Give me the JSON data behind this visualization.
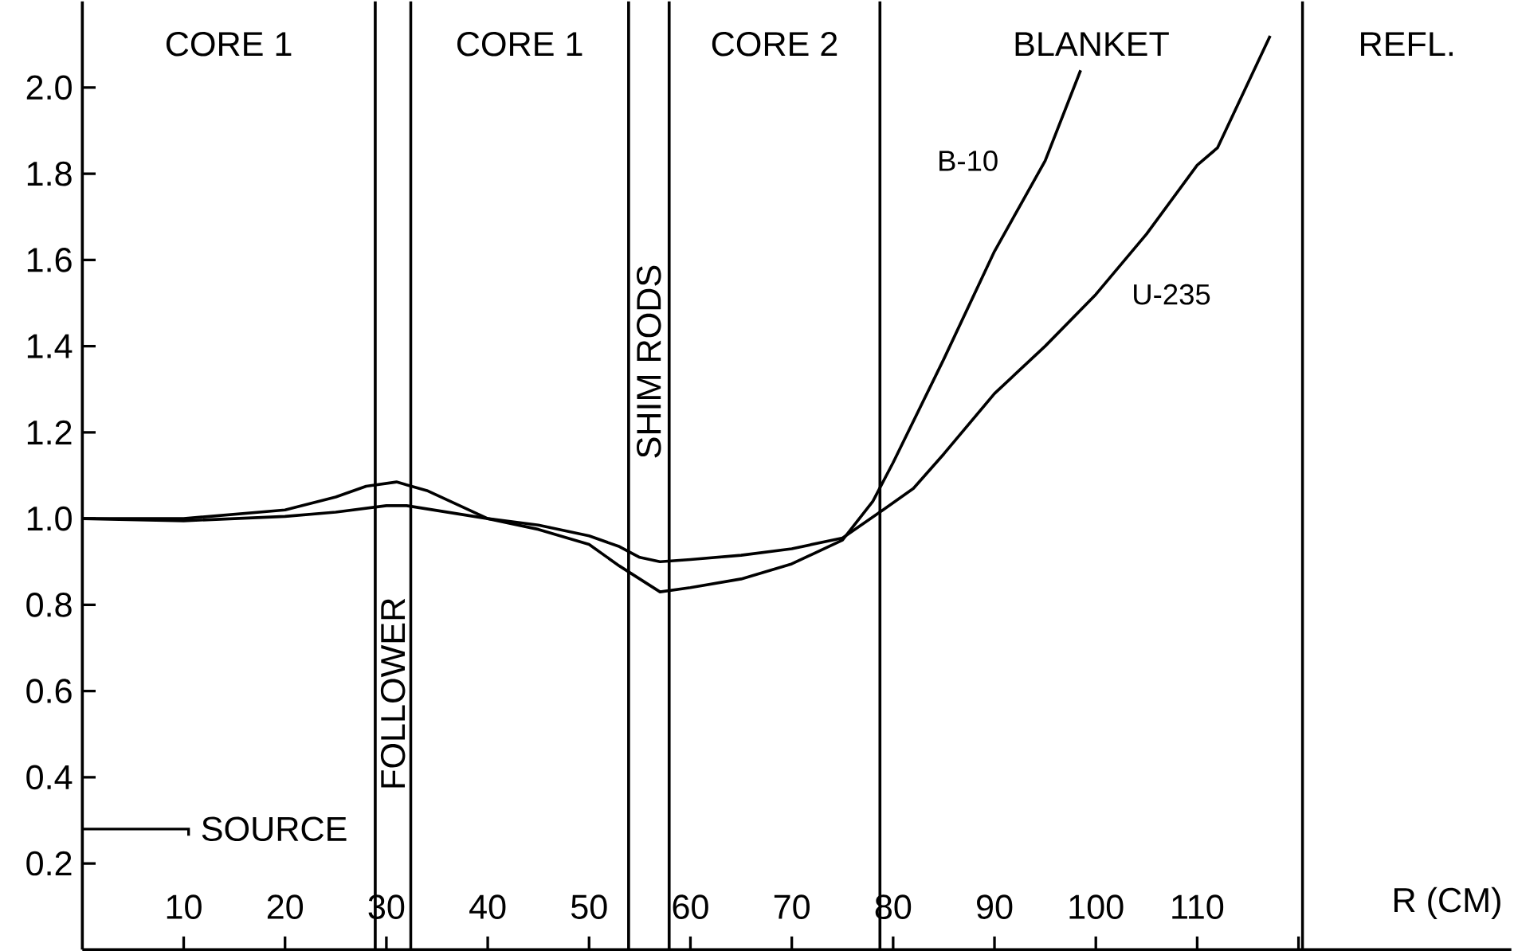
{
  "chart_data": {
    "type": "line",
    "xlabel": "R (CM)",
    "xlim": [
      0,
      141
    ],
    "ylim": [
      0,
      2.2
    ],
    "xticks": [
      10,
      20,
      30,
      40,
      50,
      60,
      70,
      80,
      90,
      100,
      110,
      {
        "value": 120,
        "label": null
      }
    ],
    "yticks": [
      {
        "value": 0.2,
        "label": "0.2"
      },
      {
        "value": 0.4,
        "label": "0.4"
      },
      {
        "value": 0.6,
        "label": "0.6"
      },
      {
        "value": 0.8,
        "label": "0.8"
      },
      {
        "value": 1.0,
        "label": "1.0"
      },
      {
        "value": 1.2,
        "label": "1.2"
      },
      {
        "value": 1.4,
        "label": "1.4"
      },
      {
        "value": 1.6,
        "label": "1.6"
      },
      {
        "value": 1.8,
        "label": "1.8"
      },
      {
        "value": 2.0,
        "label": "2.0"
      }
    ],
    "series": [
      {
        "name": "B-10",
        "color": "#000000",
        "x": [
          0,
          10,
          20,
          25,
          28,
          31,
          34,
          40,
          45,
          50,
          53,
          55,
          57,
          60,
          65,
          70,
          75,
          78,
          80,
          85,
          90,
          95,
          98.5
        ],
        "values": [
          1.0,
          1.0,
          1.02,
          1.05,
          1.075,
          1.085,
          1.065,
          1.0,
          0.975,
          0.94,
          0.89,
          0.86,
          0.83,
          0.84,
          0.86,
          0.895,
          0.95,
          1.04,
          1.13,
          1.37,
          1.62,
          1.83,
          2.04
        ]
      },
      {
        "name": "U-235",
        "color": "#000000",
        "x": [
          0,
          10,
          20,
          25,
          30,
          32,
          40,
          45,
          50,
          53,
          55,
          57,
          60,
          65,
          70,
          75,
          79,
          82,
          85,
          90,
          95,
          100,
          105,
          110,
          112,
          117.2
        ],
        "values": [
          1.0,
          0.995,
          1.005,
          1.015,
          1.03,
          1.03,
          1.0,
          0.985,
          0.96,
          0.935,
          0.91,
          0.9,
          0.905,
          0.915,
          0.93,
          0.955,
          1.02,
          1.07,
          1.15,
          1.29,
          1.4,
          1.52,
          1.66,
          1.82,
          1.86,
          2.12
        ]
      }
    ],
    "ref_lines": [
      {
        "axis": "x",
        "value": 28.9
      },
      {
        "axis": "x",
        "value": 32.4
      },
      {
        "axis": "x",
        "value": 53.9
      },
      {
        "axis": "x",
        "value": 57.9
      },
      {
        "axis": "x",
        "value": 78.7
      },
      {
        "axis": "x",
        "value": 120.4
      },
      {
        "axis": "y",
        "value": 0.28,
        "label": "SOURCE"
      }
    ],
    "annotations": [
      "CORE 1",
      "FOLLOWER",
      "CORE 1",
      "SHIM RODS",
      "CORE 2",
      "BLANKET",
      "REFL."
    ]
  }
}
